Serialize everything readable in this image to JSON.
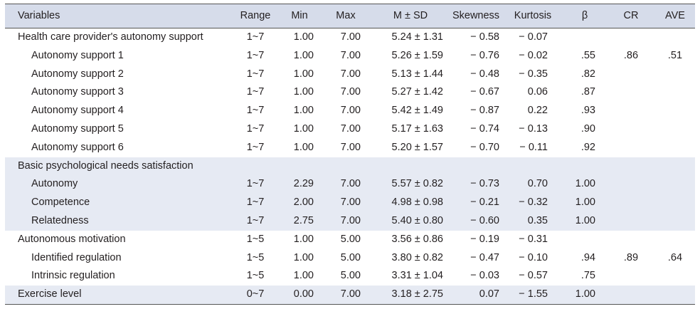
{
  "headers": {
    "variables": "Variables",
    "range": "Range",
    "min": "Min",
    "max": "Max",
    "msd": "M ± SD",
    "skewness": "Skewness",
    "kurtosis": "Kurtosis",
    "beta": "β",
    "cr": "CR",
    "ave": "AVE"
  },
  "rows": [
    {
      "label": "Health care provider's autonomy support",
      "range": "1~7",
      "min": "1.00",
      "max": "7.00",
      "msd": "5.24 ± 1.31",
      "skew": "− 0.58",
      "kurt": "− 0.07",
      "beta": "",
      "cr": "",
      "ave": ""
    },
    {
      "label": "Autonomy support 1",
      "range": "1~7",
      "min": "1.00",
      "max": "7.00",
      "msd": "5.26 ± 1.59",
      "skew": "− 0.76",
      "kurt": "− 0.02",
      "beta": ".55",
      "cr": ".86",
      "ave": ".51"
    },
    {
      "label": "Autonomy support 2",
      "range": "1~7",
      "min": "1.00",
      "max": "7.00",
      "msd": "5.13 ± 1.44",
      "skew": "− 0.48",
      "kurt": "− 0.35",
      "beta": ".82",
      "cr": "",
      "ave": ""
    },
    {
      "label": "Autonomy support 3",
      "range": "1~7",
      "min": "1.00",
      "max": "7.00",
      "msd": "5.27 ± 1.42",
      "skew": "− 0.67",
      "kurt": "0.06",
      "beta": ".87",
      "cr": "",
      "ave": ""
    },
    {
      "label": "Autonomy support 4",
      "range": "1~7",
      "min": "1.00",
      "max": "7.00",
      "msd": "5.42 ± 1.49",
      "skew": "− 0.87",
      "kurt": "0.22",
      "beta": ".93",
      "cr": "",
      "ave": ""
    },
    {
      "label": "Autonomy support 5",
      "range": "1~7",
      "min": "1.00",
      "max": "7.00",
      "msd": "5.17 ± 1.63",
      "skew": "− 0.74",
      "kurt": "− 0.13",
      "beta": ".90",
      "cr": "",
      "ave": ""
    },
    {
      "label": "Autonomy support 6",
      "range": "1~7",
      "min": "1.00",
      "max": "7.00",
      "msd": "5.20 ± 1.57",
      "skew": "− 0.70",
      "kurt": "− 0.11",
      "beta": ".92",
      "cr": "",
      "ave": ""
    },
    {
      "label": "Basic psychological needs satisfaction",
      "range": "",
      "min": "",
      "max": "",
      "msd": "",
      "skew": "",
      "kurt": "",
      "beta": "",
      "cr": "",
      "ave": ""
    },
    {
      "label": "Autonomy",
      "range": "1~7",
      "min": "2.29",
      "max": "7.00",
      "msd": "5.57 ± 0.82",
      "skew": "− 0.73",
      "kurt": "0.70",
      "beta": "1.00",
      "cr": "",
      "ave": ""
    },
    {
      "label": "Competence",
      "range": "1~7",
      "min": "2.00",
      "max": "7.00",
      "msd": "4.98 ± 0.98",
      "skew": "− 0.21",
      "kurt": "− 0.32",
      "beta": "1.00",
      "cr": "",
      "ave": ""
    },
    {
      "label": "Relatedness",
      "range": "1~7",
      "min": "2.75",
      "max": "7.00",
      "msd": "5.40 ± 0.80",
      "skew": "− 0.60",
      "kurt": "0.35",
      "beta": "1.00",
      "cr": "",
      "ave": ""
    },
    {
      "label": "Autonomous motivation",
      "range": "1~5",
      "min": "1.00",
      "max": "5.00",
      "msd": "3.56 ± 0.86",
      "skew": "− 0.19",
      "kurt": "− 0.31",
      "beta": "",
      "cr": "",
      "ave": ""
    },
    {
      "label": "Identified regulation",
      "range": "1~5",
      "min": "1.00",
      "max": "5.00",
      "msd": "3.80 ± 0.82",
      "skew": "− 0.47",
      "kurt": "− 0.10",
      "beta": ".94",
      "cr": ".89",
      "ave": ".64"
    },
    {
      "label": "Intrinsic regulation",
      "range": "1~5",
      "min": "1.00",
      "max": "5.00",
      "msd": "3.31 ± 1.04",
      "skew": "− 0.03",
      "kurt": "− 0.57",
      "beta": ".75",
      "cr": "",
      "ave": ""
    },
    {
      "label": "Exercise level",
      "range": "0~7",
      "min": "0.00",
      "max": "7.00",
      "msd": "3.18 ± 2.75",
      "skew": "0.07",
      "kurt": "− 1.55",
      "beta": "1.00",
      "cr": "",
      "ave": ""
    }
  ]
}
